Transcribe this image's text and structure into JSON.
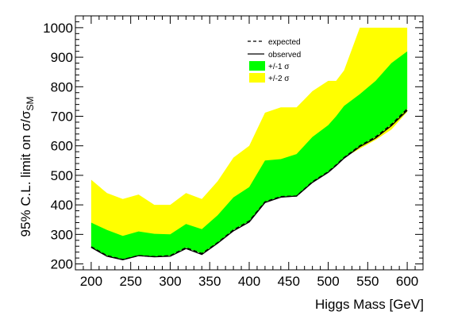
{
  "chart_data": {
    "type": "area",
    "xlabel": "Higgs Mass [GeV]",
    "ylabel_main": "95% C.L. limit on σ/σ",
    "ylabel_sub": "SM",
    "xlim": [
      180,
      620
    ],
    "ylim": [
      180,
      1040
    ],
    "xticks": [
      200,
      250,
      300,
      350,
      400,
      450,
      500,
      550,
      600
    ],
    "yticks": [
      200,
      300,
      400,
      500,
      600,
      700,
      800,
      900,
      1000
    ],
    "grid": false,
    "legend_placement": "top-center",
    "colors": {
      "band_1sigma": "#00ff00",
      "band_2sigma": "#ffff00",
      "line": "#000000"
    },
    "legend": [
      {
        "key": "expected",
        "label": "expected",
        "style": "dashed"
      },
      {
        "key": "observed",
        "label": "observed",
        "style": "solid"
      },
      {
        "key": "band1",
        "label": "+/-1 σ",
        "style": "fill-green"
      },
      {
        "key": "band2",
        "label": "+/-2 σ",
        "style": "fill-yellow"
      }
    ],
    "mass": [
      200,
      220,
      240,
      260,
      280,
      300,
      320,
      340,
      360,
      380,
      400,
      420,
      440,
      460,
      480,
      500,
      510,
      520,
      540,
      560,
      580,
      600
    ],
    "expected": [
      258,
      228,
      215,
      228,
      225,
      228,
      255,
      235,
      272,
      315,
      345,
      410,
      428,
      430,
      478,
      512,
      535,
      560,
      600,
      630,
      672,
      725
    ],
    "observed": [
      256,
      226,
      214,
      228,
      224,
      226,
      252,
      232,
      270,
      312,
      342,
      408,
      426,
      430,
      476,
      510,
      533,
      558,
      597,
      626,
      668,
      720
    ],
    "minus2sigma": [
      258,
      228,
      215,
      228,
      225,
      228,
      255,
      235,
      272,
      315,
      345,
      410,
      428,
      430,
      478,
      512,
      535,
      560,
      590,
      620,
      655,
      715
    ],
    "minus1sigma": [
      258,
      228,
      215,
      228,
      225,
      228,
      255,
      235,
      272,
      315,
      345,
      410,
      428,
      430,
      478,
      512,
      535,
      560,
      600,
      630,
      672,
      725
    ],
    "plus1sigma": [
      340,
      315,
      295,
      310,
      302,
      300,
      335,
      318,
      365,
      425,
      460,
      550,
      555,
      572,
      630,
      670,
      700,
      735,
      775,
      820,
      880,
      920
    ],
    "plus2sigma": [
      485,
      440,
      420,
      435,
      400,
      400,
      440,
      420,
      480,
      560,
      600,
      712,
      730,
      730,
      785,
      820,
      820,
      855,
      1000,
      1000,
      1000,
      1000
    ]
  }
}
